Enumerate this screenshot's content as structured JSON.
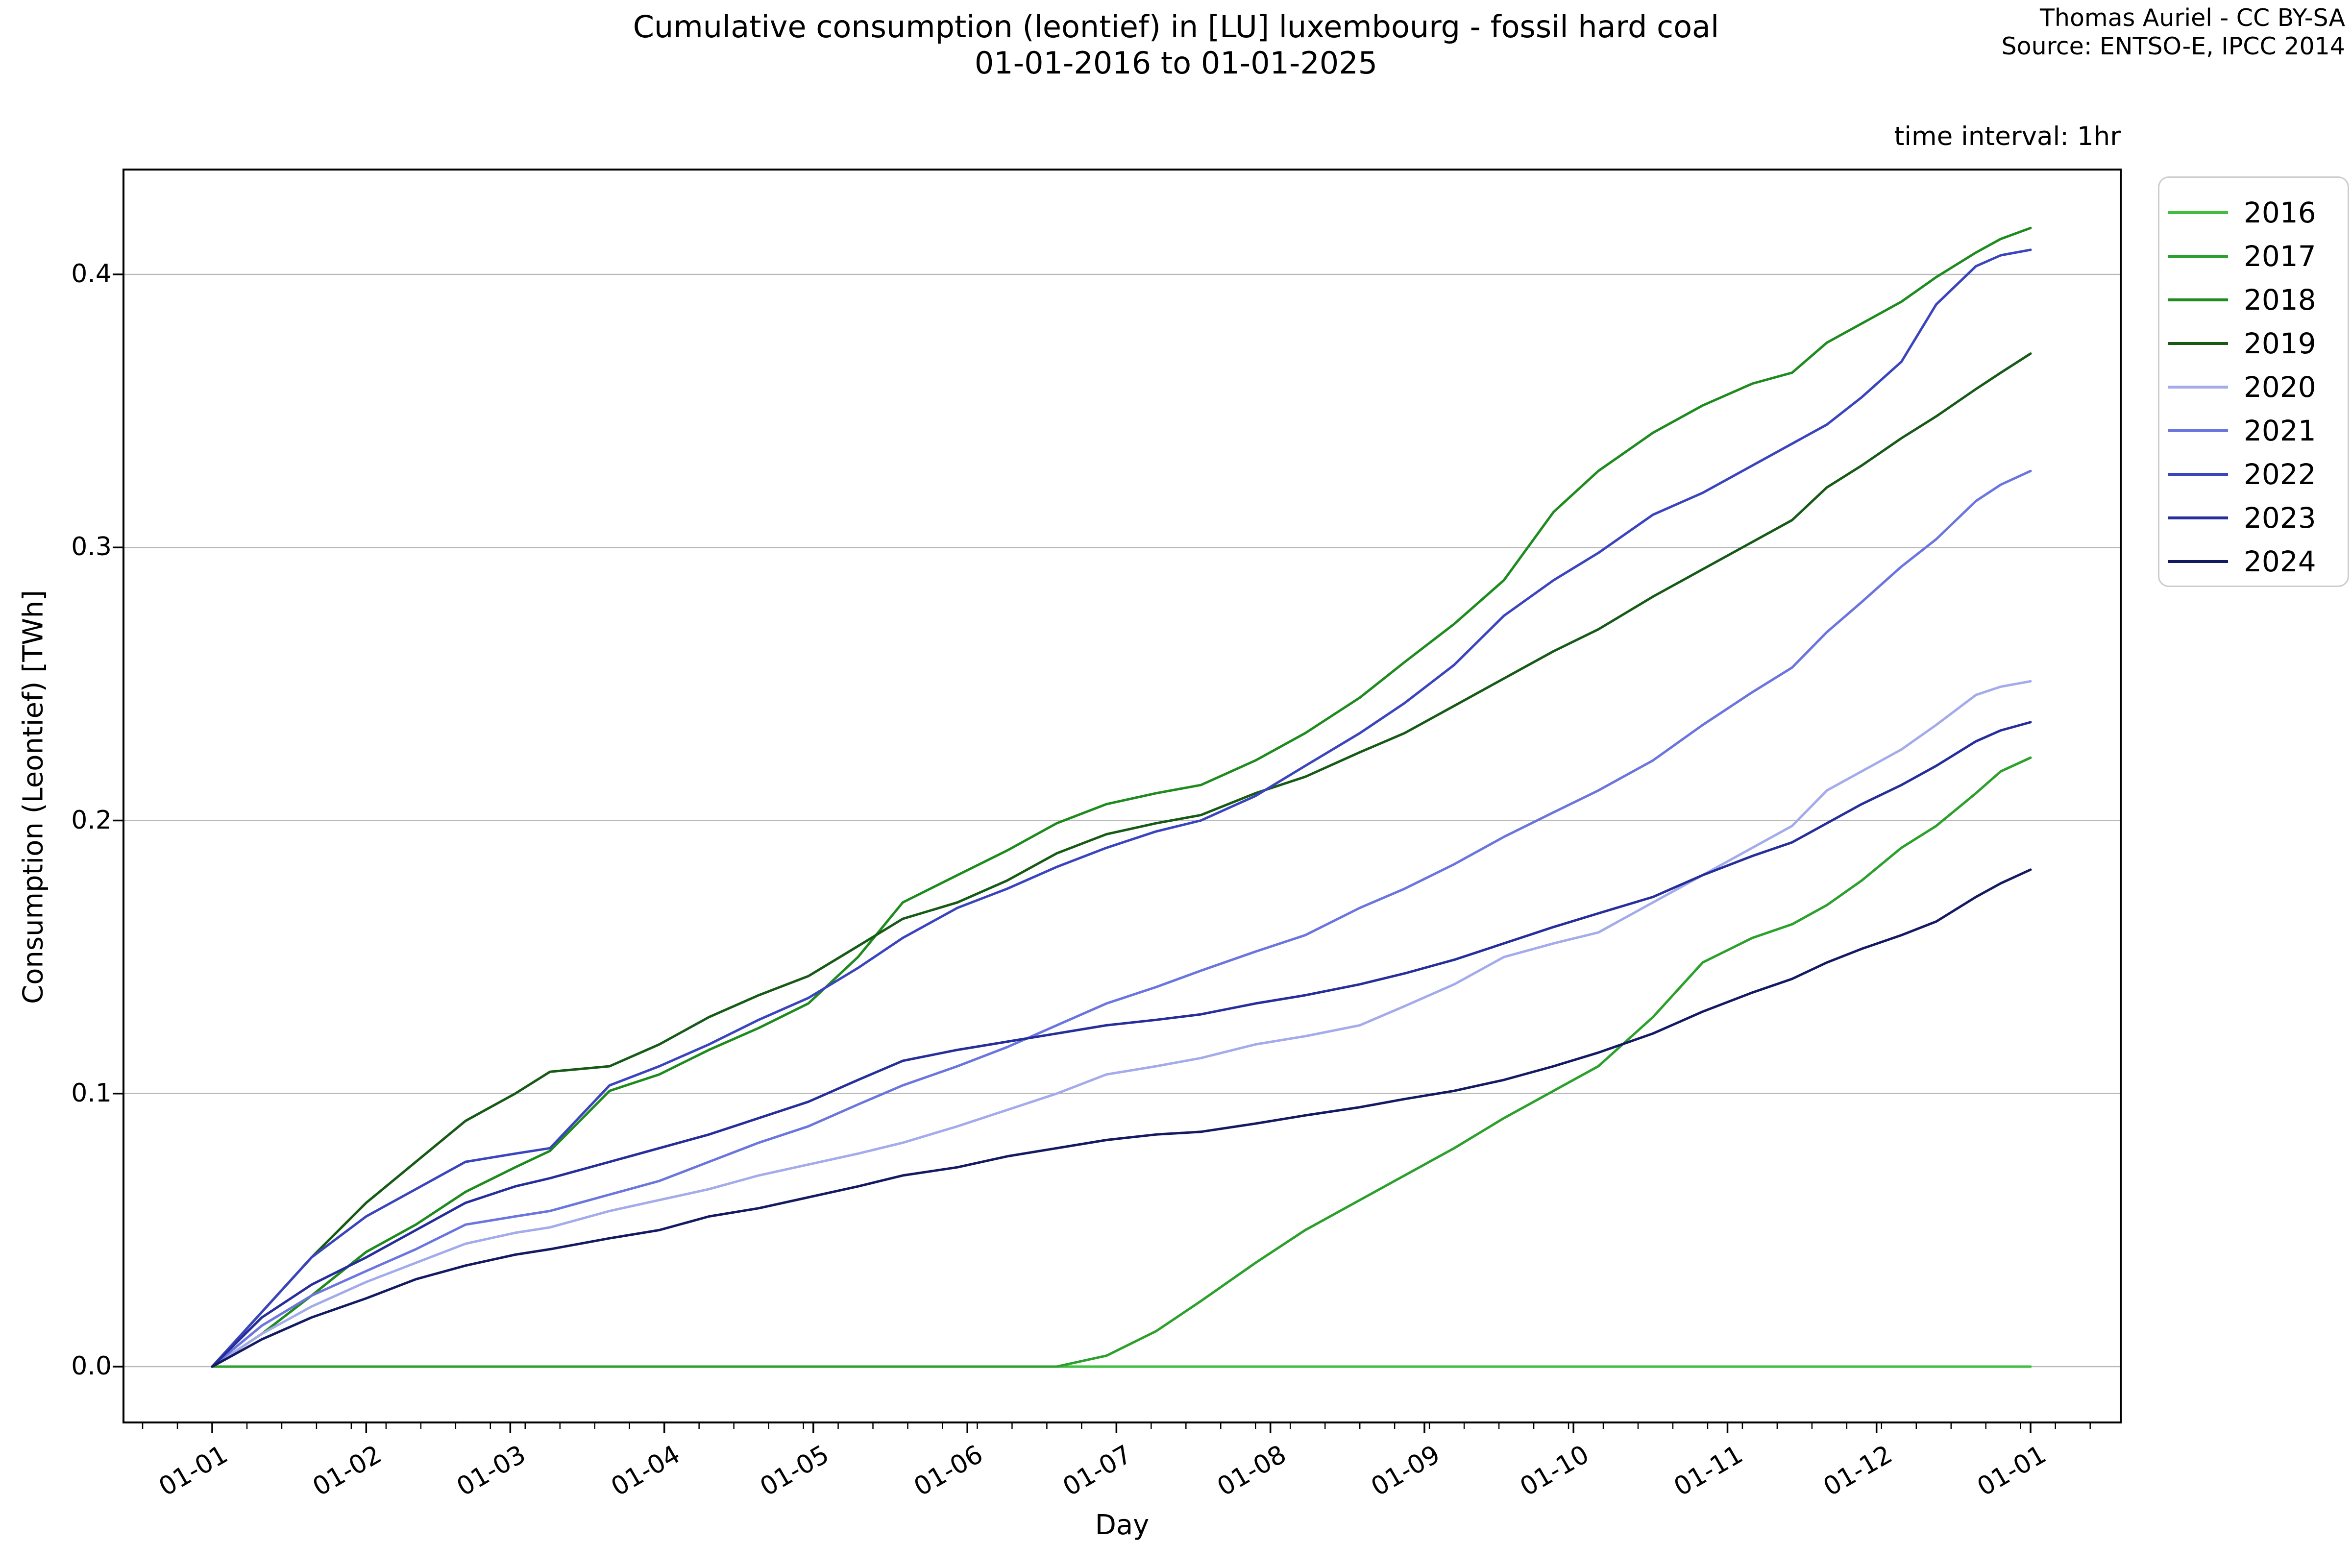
{
  "header": {
    "title_line1": "Cumulative consumption (leontief) in [LU] luxembourg - fossil hard coal",
    "title_line2": "01-01-2016 to 01-01-2025",
    "attribution_line1": "Thomas Auriel - CC BY-SA",
    "attribution_line2": "Source: ENTSO-E, IPCC 2014",
    "time_interval_note": "time interval: 1hr"
  },
  "chart_data": {
    "type": "line",
    "title": "Cumulative consumption (leontief) in [LU] luxembourg - fossil hard coal",
    "subtitle": "01-01-2016 to 01-01-2025",
    "xlabel": "Day",
    "ylabel": "Consumption (Leontief) [TWh]",
    "note": "time interval: 1hr",
    "grid": "horizontal",
    "legend_position": "outside-upper-right",
    "x_unit": "day-of-year (all years overlaid Jan 1 - Dec 31)",
    "x_tick_labels": [
      "01-01",
      "01-02",
      "01-03",
      "01-04",
      "01-05",
      "01-06",
      "01-07",
      "01-08",
      "01-09",
      "01-10",
      "01-11",
      "01-12",
      "01-01"
    ],
    "x_tick_days": [
      0,
      31,
      60,
      91,
      121,
      152,
      182,
      213,
      244,
      274,
      305,
      335,
      366
    ],
    "y_ticks": [
      0.0,
      0.1,
      0.2,
      0.3,
      0.4
    ],
    "y_tick_labels": [
      "0.0",
      "0.1",
      "0.2",
      "0.3",
      "0.4"
    ],
    "ylim": [
      -0.021,
      0.439
    ],
    "xlim_days": [
      -17.9,
      384.2
    ],
    "minor_tick_step_days": 7,
    "x_days": [
      0,
      10,
      20,
      31,
      41,
      51,
      61,
      68,
      80,
      90,
      100,
      110,
      120,
      130,
      139,
      150,
      160,
      170,
      180,
      190,
      199,
      210,
      220,
      231,
      240,
      250,
      260,
      270,
      279,
      290,
      300,
      310,
      318,
      325,
      332,
      340,
      347,
      355,
      360,
      366
    ],
    "series": [
      {
        "name": "2016",
        "color": "#3FBE3F",
        "values": [
          0,
          0,
          0,
          0,
          0,
          0,
          0,
          0,
          0,
          0,
          0,
          0,
          0,
          0,
          0,
          0,
          0,
          0,
          0,
          0,
          0,
          0,
          0,
          0,
          0,
          0,
          0,
          0,
          0,
          0,
          0,
          0,
          0,
          0,
          0,
          0,
          0,
          0,
          0,
          0
        ]
      },
      {
        "name": "2017",
        "color": "#2CA02C",
        "values": [
          0,
          0,
          0,
          0,
          0,
          0,
          0,
          0,
          0,
          0,
          0,
          0,
          0,
          0,
          0,
          0,
          0,
          0,
          0.004,
          0.013,
          0.024,
          0.038,
          0.05,
          0.061,
          0.07,
          0.08,
          0.091,
          0.101,
          0.11,
          0.128,
          0.148,
          0.157,
          0.162,
          0.169,
          0.178,
          0.19,
          0.198,
          0.21,
          0.218,
          0.223
        ]
      },
      {
        "name": "2018",
        "color": "#1E8B1E",
        "values": [
          0,
          0.012,
          0.026,
          0.042,
          0.052,
          0.064,
          0.073,
          0.079,
          0.101,
          0.107,
          0.116,
          0.124,
          0.133,
          0.15,
          0.17,
          0.18,
          0.189,
          0.199,
          0.206,
          0.21,
          0.213,
          0.222,
          0.232,
          0.245,
          0.258,
          0.272,
          0.288,
          0.313,
          0.328,
          0.342,
          0.352,
          0.36,
          0.364,
          0.375,
          0.382,
          0.39,
          0.399,
          0.408,
          0.413,
          0.417
        ]
      },
      {
        "name": "2019",
        "color": "#165A16",
        "values": [
          0,
          0.02,
          0.04,
          0.06,
          0.075,
          0.09,
          0.1,
          0.108,
          0.11,
          0.118,
          0.128,
          0.136,
          0.143,
          0.154,
          0.164,
          0.17,
          0.178,
          0.188,
          0.195,
          0.199,
          0.202,
          0.21,
          0.216,
          0.225,
          0.232,
          0.242,
          0.252,
          0.262,
          0.27,
          0.282,
          0.292,
          0.302,
          0.31,
          0.322,
          0.33,
          0.34,
          0.348,
          0.358,
          0.364,
          0.371
        ]
      },
      {
        "name": "2020",
        "color": "#A3ABEB",
        "values": [
          0,
          0.012,
          0.022,
          0.031,
          0.038,
          0.045,
          0.049,
          0.051,
          0.057,
          0.061,
          0.065,
          0.07,
          0.074,
          0.078,
          0.082,
          0.088,
          0.094,
          0.1,
          0.107,
          0.11,
          0.113,
          0.118,
          0.121,
          0.125,
          0.132,
          0.14,
          0.15,
          0.155,
          0.159,
          0.17,
          0.18,
          0.19,
          0.198,
          0.211,
          0.218,
          0.226,
          0.235,
          0.246,
          0.249,
          0.251
        ]
      },
      {
        "name": "2021",
        "color": "#6B75DE",
        "values": [
          0,
          0.015,
          0.026,
          0.035,
          0.043,
          0.052,
          0.055,
          0.057,
          0.063,
          0.068,
          0.075,
          0.082,
          0.088,
          0.096,
          0.103,
          0.11,
          0.117,
          0.125,
          0.133,
          0.139,
          0.145,
          0.152,
          0.158,
          0.168,
          0.175,
          0.184,
          0.194,
          0.203,
          0.211,
          0.222,
          0.235,
          0.247,
          0.256,
          0.269,
          0.28,
          0.293,
          0.303,
          0.317,
          0.323,
          0.328
        ]
      },
      {
        "name": "2022",
        "color": "#3A44BE",
        "values": [
          0,
          0.02,
          0.04,
          0.055,
          0.065,
          0.075,
          0.078,
          0.08,
          0.103,
          0.11,
          0.118,
          0.127,
          0.135,
          0.146,
          0.157,
          0.168,
          0.175,
          0.183,
          0.19,
          0.196,
          0.2,
          0.209,
          0.22,
          0.232,
          0.243,
          0.257,
          0.275,
          0.288,
          0.298,
          0.312,
          0.32,
          0.33,
          0.338,
          0.345,
          0.355,
          0.368,
          0.389,
          0.403,
          0.407,
          0.409
        ]
      },
      {
        "name": "2023",
        "color": "#252E9A",
        "values": [
          0,
          0.018,
          0.03,
          0.04,
          0.05,
          0.06,
          0.066,
          0.069,
          0.075,
          0.08,
          0.085,
          0.091,
          0.097,
          0.105,
          0.112,
          0.116,
          0.119,
          0.122,
          0.125,
          0.127,
          0.129,
          0.133,
          0.136,
          0.14,
          0.144,
          0.149,
          0.155,
          0.161,
          0.166,
          0.172,
          0.18,
          0.187,
          0.192,
          0.199,
          0.206,
          0.213,
          0.22,
          0.229,
          0.233,
          0.236
        ]
      },
      {
        "name": "2024",
        "color": "#141A62",
        "values": [
          0,
          0.01,
          0.018,
          0.025,
          0.032,
          0.037,
          0.041,
          0.043,
          0.047,
          0.05,
          0.055,
          0.058,
          0.062,
          0.066,
          0.07,
          0.073,
          0.077,
          0.08,
          0.083,
          0.085,
          0.086,
          0.089,
          0.092,
          0.095,
          0.098,
          0.101,
          0.105,
          0.11,
          0.115,
          0.122,
          0.13,
          0.137,
          0.142,
          0.148,
          0.153,
          0.158,
          0.163,
          0.172,
          0.177,
          0.182
        ]
      }
    ],
    "style": {
      "grid_color": "#b9b9b9",
      "spine_color": "#000000",
      "line_width": 5
    }
  }
}
